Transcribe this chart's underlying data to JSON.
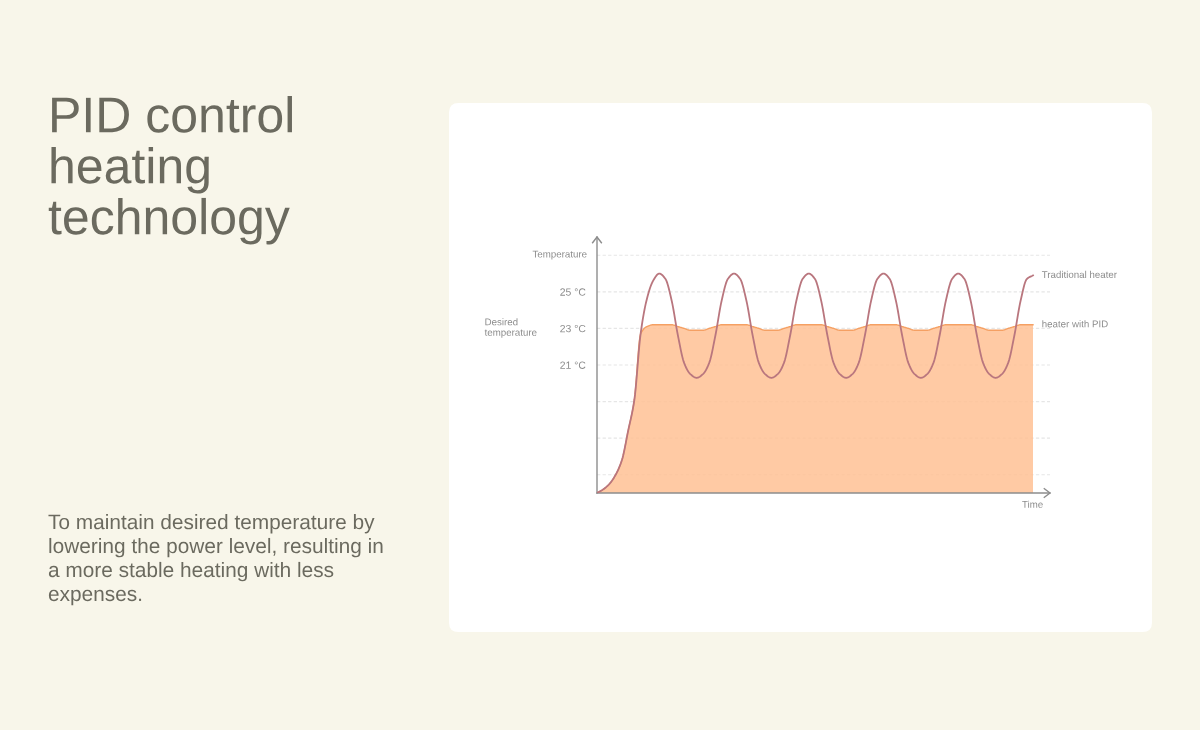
{
  "chart_data": {
    "type": "area",
    "title": "PID control heating technology",
    "xlabel": "Time",
    "ylabel": "Temperature",
    "annotations": [
      "Desired temperature",
      "To maintain desired temperature by lowering the power level, resulting in a more stable heating with less expenses."
    ],
    "categories": [
      null,
      null,
      null,
      null,
      null,
      null,
      null,
      null,
      null,
      null,
      null,
      null,
      null,
      null,
      null,
      null,
      null,
      null,
      null,
      null,
      null,
      null,
      null,
      null,
      null,
      null,
      null,
      null,
      null,
      null,
      null,
      null,
      null,
      null,
      null,
      null,
      null,
      null,
      null,
      null,
      null,
      null,
      null,
      null,
      null,
      null,
      null,
      null,
      null,
      null,
      null,
      null,
      null,
      null,
      null,
      null,
      null,
      null,
      null,
      null,
      null,
      null,
      null,
      null,
      null,
      null,
      null,
      null,
      null,
      null,
      null
    ],
    "series": [
      {
        "name": "Traditional heater",
        "type": "line",
        "color": "#b9767e",
        "values": [
          14.0,
          14.2,
          14.5,
          15.0,
          15.8,
          17.4,
          19.1,
          22.7,
          24.6,
          25.6,
          26.0,
          25.7,
          24.5,
          22.6,
          21.1,
          20.5,
          20.3,
          20.5,
          21.1,
          22.6,
          24.5,
          25.7,
          26.0,
          25.7,
          24.5,
          22.6,
          21.1,
          20.5,
          20.3,
          20.5,
          21.1,
          22.6,
          24.5,
          25.7,
          26.0,
          25.7,
          24.5,
          22.6,
          21.1,
          20.5,
          20.3,
          20.5,
          21.1,
          22.6,
          24.5,
          25.7,
          26.0,
          25.7,
          24.5,
          22.6,
          21.1,
          20.5,
          20.3,
          20.5,
          21.1,
          22.6,
          24.5,
          25.7,
          26.0,
          25.7,
          24.5,
          22.6,
          21.1,
          20.5,
          20.3,
          20.5,
          21.1,
          22.6,
          24.5,
          25.7,
          25.9
        ]
      },
      {
        "name": "heater with PID",
        "color": "#f5a063",
        "values": [
          14.0,
          14.2,
          14.5,
          15.0,
          15.8,
          17.4,
          19.1,
          22.7,
          23.1,
          23.2,
          23.2,
          23.2,
          23.2,
          23.1,
          23.0,
          22.9,
          22.9,
          22.9,
          23.0,
          23.1,
          23.2,
          23.2,
          23.2,
          23.2,
          23.2,
          23.1,
          23.0,
          22.9,
          22.9,
          22.9,
          23.0,
          23.1,
          23.2,
          23.2,
          23.2,
          23.2,
          23.2,
          23.1,
          23.0,
          22.9,
          22.9,
          22.9,
          23.0,
          23.1,
          23.2,
          23.2,
          23.2,
          23.2,
          23.2,
          23.1,
          23.0,
          22.9,
          22.9,
          22.9,
          23.0,
          23.1,
          23.2,
          23.2,
          23.2,
          23.2,
          23.2,
          23.1,
          23.0,
          22.9,
          22.9,
          22.9,
          23.0,
          23.1,
          23.2,
          23.2,
          23.2
        ]
      }
    ],
    "ylim": [
      14,
      28
    ],
    "yticks": [
      {
        "value": 15,
        "label": null
      },
      {
        "value": 17,
        "label": null
      },
      {
        "value": 19,
        "label": null
      },
      {
        "value": 21,
        "label": "21 °C"
      },
      {
        "value": 23,
        "label": "23 °C"
      },
      {
        "value": 25,
        "label": "25 °C"
      },
      {
        "value": 27,
        "label": null
      }
    ],
    "grid": "y"
  }
}
